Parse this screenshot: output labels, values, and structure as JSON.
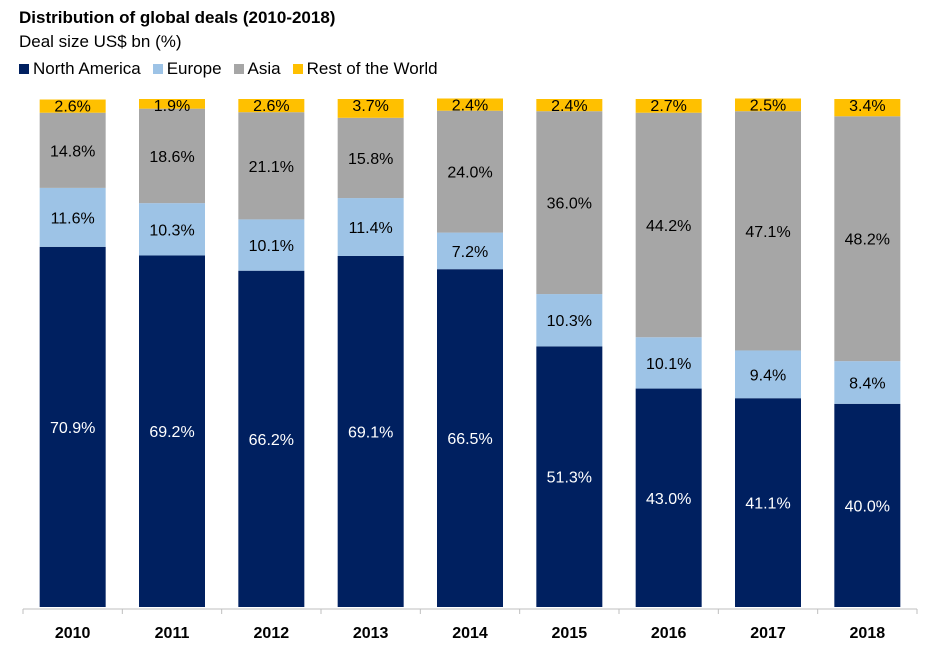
{
  "chart_data": {
    "type": "bar",
    "stacked": true,
    "title": "Distribution of global deals (2010-2018)",
    "subtitle": "Deal size US$ bn (%)",
    "categories": [
      "2010",
      "2011",
      "2012",
      "2013",
      "2014",
      "2015",
      "2016",
      "2017",
      "2018"
    ],
    "series": [
      {
        "name": "North America",
        "color": "#002060",
        "label_color": "#ffffff",
        "values": [
          70.9,
          69.2,
          66.2,
          69.1,
          66.5,
          51.3,
          43.0,
          41.1,
          40.0
        ]
      },
      {
        "name": "Europe",
        "color": "#9dc3e6",
        "label_color": "#000000",
        "values": [
          11.6,
          10.3,
          10.1,
          11.4,
          7.2,
          10.3,
          10.1,
          9.4,
          8.4
        ]
      },
      {
        "name": "Asia",
        "color": "#a6a6a6",
        "label_color": "#000000",
        "values": [
          14.8,
          18.6,
          21.1,
          15.8,
          24.0,
          36.0,
          44.2,
          47.1,
          48.2
        ]
      },
      {
        "name": "Rest of the World",
        "color": "#ffc000",
        "label_color": "#000000",
        "values": [
          2.6,
          1.9,
          2.6,
          3.7,
          2.4,
          2.4,
          2.7,
          2.5,
          3.4
        ]
      }
    ],
    "ylim": [
      0,
      100
    ],
    "grid": false,
    "legend_position": "top-left",
    "value_format": "percent, 1 decimal"
  }
}
